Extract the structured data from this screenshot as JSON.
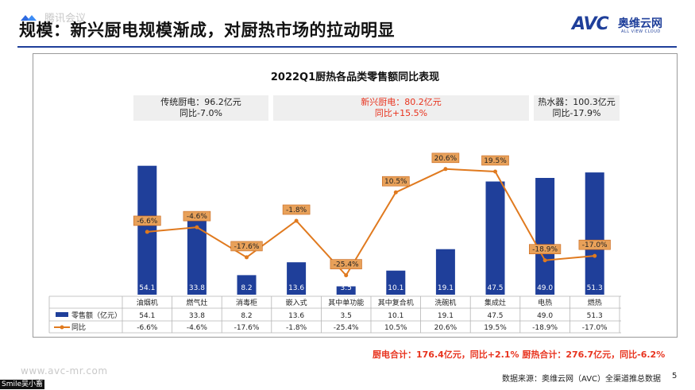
{
  "header": {
    "title": "规模：新兴厨电规模渐成，对厨热市场的拉动明显",
    "watermark": "腾讯会议",
    "brand_name": "AVC",
    "brand_cn": "奥维云网",
    "brand_en": "ALL VIEW CLOUD"
  },
  "groups": [
    {
      "line1": "传统厨电：96.2亿元",
      "line2": "同比-7.0%"
    },
    {
      "line1": "新兴厨电：80.2亿元",
      "line2": "同比+15.5%"
    },
    {
      "line1": "热水器：100.3亿元",
      "line2": "同比-17.9%"
    }
  ],
  "chart_data": {
    "type": "bar+line",
    "title": "2022Q1厨热各品类零售额同比表现",
    "categories": [
      "油烟机",
      "燃气灶",
      "消毒柜",
      "嵌入式",
      "其中单功能",
      "其中复合机",
      "洗碗机",
      "集成灶",
      "电热",
      "燃热"
    ],
    "series": [
      {
        "name": "零售额（亿元）",
        "type": "bar",
        "color": "#1f3f9a",
        "values": [
          54.1,
          33.8,
          8.2,
          13.6,
          3.5,
          10.1,
          19.1,
          47.5,
          49.0,
          51.3
        ],
        "labels": [
          "54.1",
          "33.8",
          "8.2",
          "13.6",
          "3.5",
          "10.1",
          "19.1",
          "47.5",
          "49.0",
          "51.3"
        ]
      },
      {
        "name": "同比",
        "type": "line",
        "color": "#e07a1f",
        "values": [
          -6.6,
          -4.6,
          -17.6,
          -1.8,
          -25.4,
          10.5,
          20.6,
          19.5,
          -18.9,
          -17.0
        ],
        "labels": [
          "-6.6%",
          "-4.6%",
          "-17.6%",
          "-1.8%",
          "-25.4%",
          "10.5%",
          "20.6%",
          "19.5%",
          "-18.9%",
          "-17.0%"
        ]
      }
    ],
    "bar_range": [
      0,
      60
    ],
    "line_range": [
      -30,
      25
    ]
  },
  "footer": {
    "totals": "厨电合计：176.4亿元，同比+2.1%  厨热合计：276.7亿元，同比-6.2%",
    "source": "数据来源：奥维云网（AVC）全渠道推总数据",
    "page": "5",
    "watermark_url": "www.avc-mr.com",
    "sign": "Smile吴小畜"
  }
}
